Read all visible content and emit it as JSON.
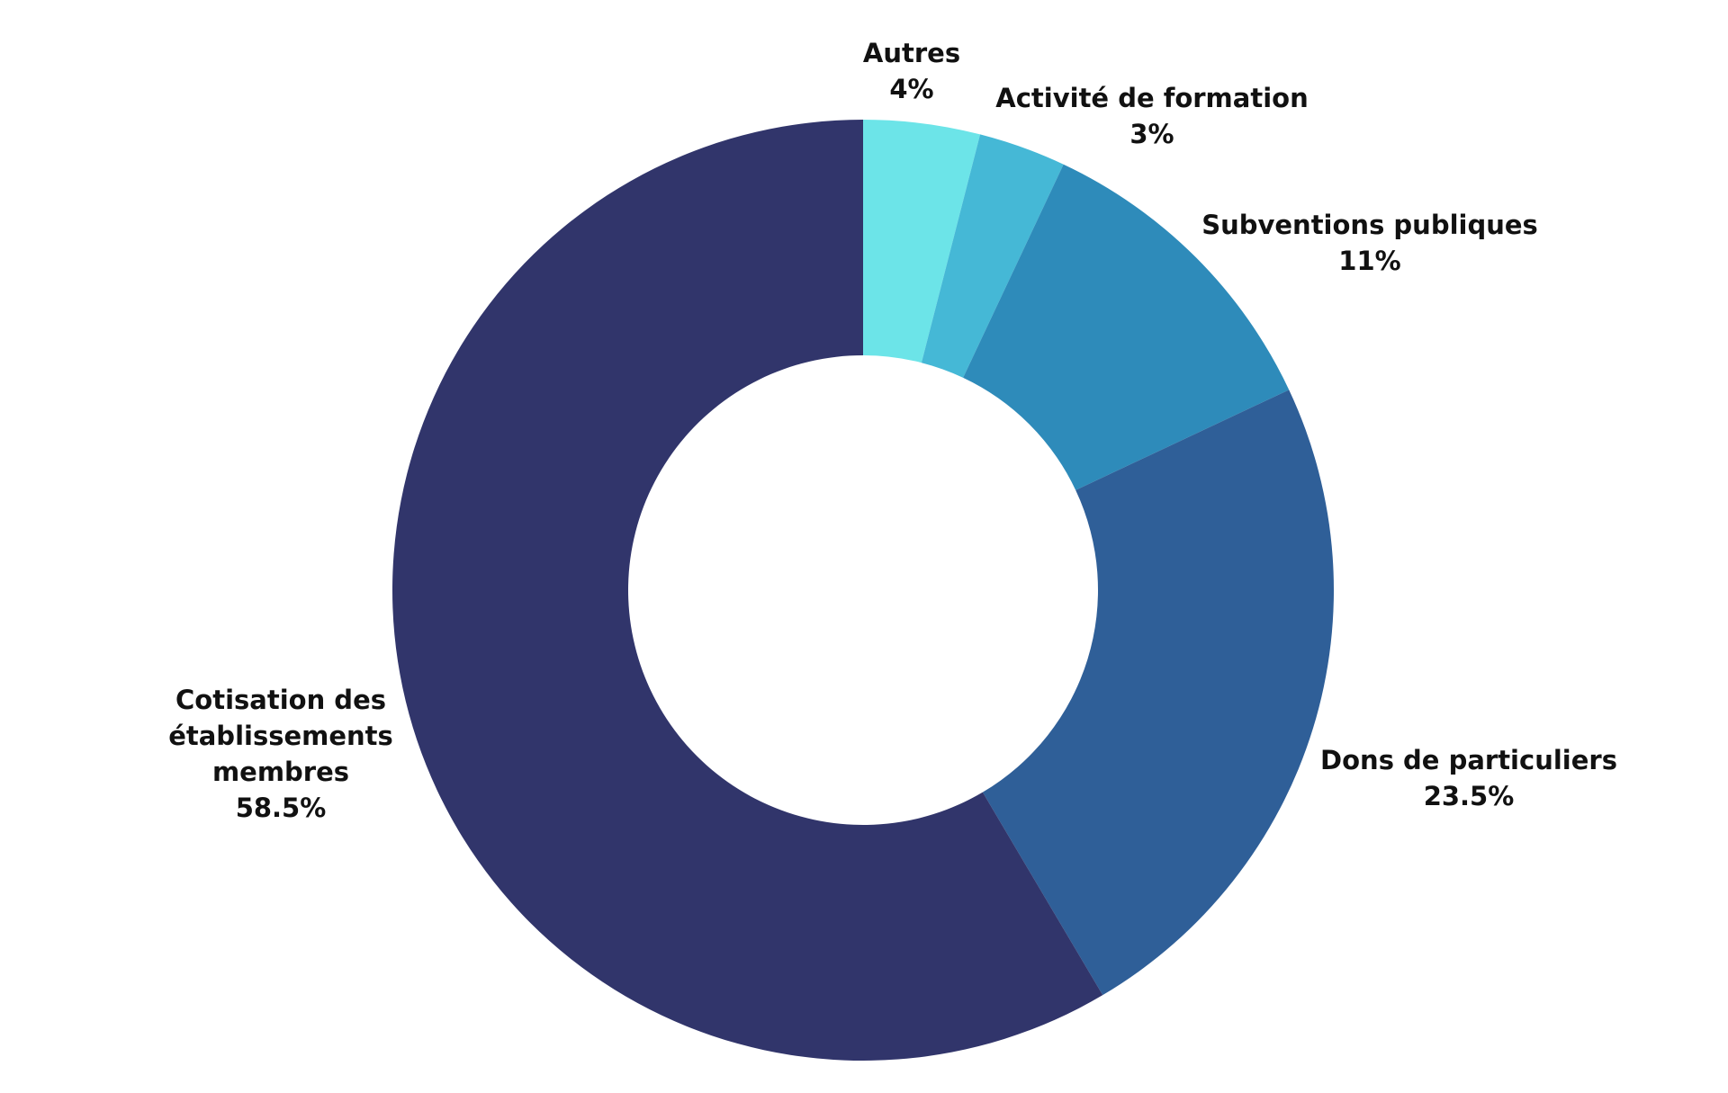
{
  "chart_data": {
    "type": "donut",
    "categories": [
      "Autres",
      "Activité de formation",
      "Subventions publiques",
      "Dons de particuliers",
      "Cotisation des établissements membres"
    ],
    "values": [
      4,
      3,
      11,
      23.5,
      58.5
    ],
    "value_labels": [
      "4%",
      "3%",
      "11%",
      "23.5%",
      "58.5%"
    ],
    "colors": [
      "#6ce4e8",
      "#45b8d6",
      "#2e8bba",
      "#2f5f98",
      "#31356b"
    ]
  }
}
